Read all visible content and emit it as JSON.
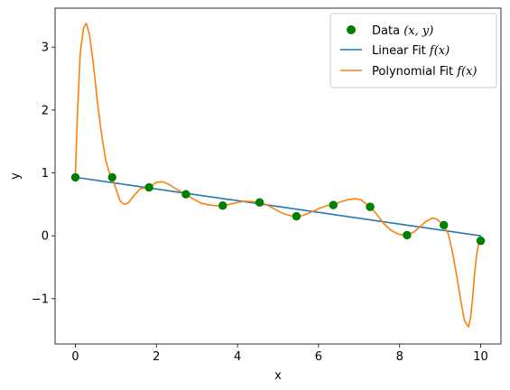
{
  "chart_data": {
    "type": "scatter",
    "xlabel": "x",
    "ylabel": "y",
    "xlim": [
      -0.5,
      10.5
    ],
    "ylim": [
      -1.72,
      3.62
    ],
    "xticks": [
      0,
      2,
      4,
      6,
      8,
      10
    ],
    "yticks": [
      -1,
      0,
      1,
      2,
      3
    ],
    "xtick_labels": [
      "0",
      "2",
      "4",
      "6",
      "8",
      "10"
    ],
    "ytick_labels": [
      "−1",
      "0",
      "1",
      "2",
      "3"
    ],
    "grid": false,
    "legend_position": "top-right",
    "series": [
      {
        "name": "Data (x, y)",
        "kind": "scatter",
        "color": "#008000",
        "x": [
          0.0,
          0.909,
          1.818,
          2.727,
          3.636,
          4.545,
          5.455,
          6.364,
          7.273,
          8.182,
          9.091,
          10.0
        ],
        "y": [
          0.93,
          0.93,
          0.77,
          0.66,
          0.48,
          0.53,
          0.31,
          0.49,
          0.46,
          0.01,
          0.17,
          -0.08
        ]
      },
      {
        "name": "Linear Fit f(x)",
        "kind": "line",
        "color": "#1f77b4",
        "x": [
          0,
          10
        ],
        "y": [
          0.93,
          0.0
        ]
      },
      {
        "name": "Polynomial Fit f(x)",
        "kind": "line",
        "color": "#ff7f0e",
        "x": [
          0.0,
          0.05,
          0.12,
          0.2,
          0.27,
          0.35,
          0.45,
          0.55,
          0.65,
          0.75,
          0.85,
          0.909,
          1.0,
          1.1,
          1.2,
          1.3,
          1.45,
          1.6,
          1.818,
          2.0,
          2.15,
          2.3,
          2.5,
          2.727,
          2.9,
          3.1,
          3.3,
          3.45,
          3.636,
          3.8,
          4.0,
          4.2,
          4.4,
          4.545,
          4.7,
          4.9,
          5.1,
          5.3,
          5.455,
          5.6,
          5.8,
          6.0,
          6.2,
          6.364,
          6.5,
          6.7,
          6.9,
          7.05,
          7.273,
          7.45,
          7.6,
          7.8,
          8.0,
          8.182,
          8.35,
          8.5,
          8.65,
          8.8,
          8.9,
          9.0,
          9.091,
          9.2,
          9.3,
          9.4,
          9.5,
          9.6,
          9.7,
          9.75,
          9.8,
          9.85,
          9.9,
          9.95,
          10.0
        ],
        "y": [
          0.93,
          1.9,
          2.9,
          3.3,
          3.38,
          3.2,
          2.7,
          2.1,
          1.6,
          1.2,
          0.98,
          0.93,
          0.75,
          0.56,
          0.5,
          0.52,
          0.64,
          0.75,
          0.77,
          0.85,
          0.86,
          0.82,
          0.74,
          0.66,
          0.59,
          0.52,
          0.49,
          0.48,
          0.48,
          0.5,
          0.53,
          0.55,
          0.54,
          0.53,
          0.5,
          0.43,
          0.36,
          0.32,
          0.31,
          0.32,
          0.37,
          0.43,
          0.48,
          0.49,
          0.53,
          0.57,
          0.59,
          0.57,
          0.46,
          0.33,
          0.2,
          0.08,
          0.02,
          0.01,
          0.06,
          0.14,
          0.23,
          0.28,
          0.27,
          0.22,
          0.17,
          0.03,
          -0.25,
          -0.6,
          -1.0,
          -1.35,
          -1.45,
          -1.3,
          -1.0,
          -0.6,
          -0.3,
          -0.12,
          -0.08
        ]
      }
    ],
    "legend": {
      "entries": [
        {
          "prefix": "Data ",
          "math": "(x, y)"
        },
        {
          "prefix": "Linear Fit ",
          "math": "f(x)"
        },
        {
          "prefix": "Polynomial Fit ",
          "math": "f(x)"
        }
      ]
    }
  }
}
